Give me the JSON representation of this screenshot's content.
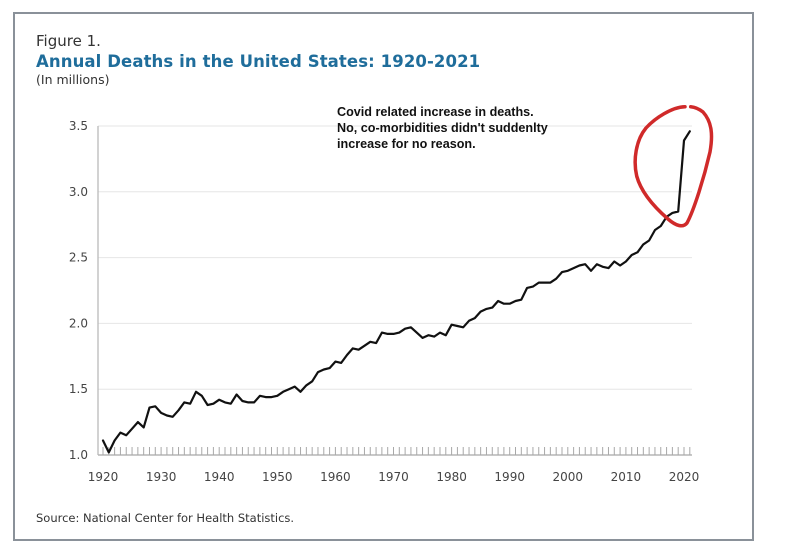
{
  "figure": {
    "label": "Figure 1.",
    "title": "Annual Deaths in the United States: 1920-2021",
    "subtitle": "(In millions)",
    "source": "Source: National Center for Health Statistics.",
    "title_color": "#1f6d9b"
  },
  "annotation": {
    "lines": [
      "Covid related increase in deaths.",
      "No, co-morbidities didn't suddenlty",
      "increase for no reason."
    ],
    "highlight_color": "#d02a2a",
    "highlight_shape": "hand-drawn circle around 2019-2021 values"
  },
  "chart_data": {
    "type": "line",
    "title": "Annual Deaths in the United States: 1920-2021",
    "subtitle": "(In millions)",
    "xlabel": "",
    "ylabel": "",
    "xlim": [
      1920,
      2021
    ],
    "ylim": [
      1.0,
      3.5
    ],
    "grid": "horizontal",
    "legend": "none",
    "x_ticks": [
      "1920",
      "1930",
      "1940",
      "1950",
      "1960",
      "1970",
      "1980",
      "1990",
      "2000",
      "2010",
      "2020"
    ],
    "y_ticks": [
      "1.0",
      "1.5",
      "2.0",
      "2.5",
      "3.0",
      "3.5"
    ],
    "series": [
      {
        "name": "Annual deaths (millions)",
        "color": "#111111",
        "x": [
          1920,
          1921,
          1922,
          1923,
          1924,
          1925,
          1926,
          1927,
          1928,
          1929,
          1930,
          1931,
          1932,
          1933,
          1934,
          1935,
          1936,
          1937,
          1938,
          1939,
          1940,
          1941,
          1942,
          1943,
          1944,
          1945,
          1946,
          1947,
          1948,
          1949,
          1950,
          1951,
          1952,
          1953,
          1954,
          1955,
          1956,
          1957,
          1958,
          1959,
          1960,
          1961,
          1962,
          1963,
          1964,
          1965,
          1966,
          1967,
          1968,
          1969,
          1970,
          1971,
          1972,
          1973,
          1974,
          1975,
          1976,
          1977,
          1978,
          1979,
          1980,
          1981,
          1982,
          1983,
          1984,
          1985,
          1986,
          1987,
          1988,
          1989,
          1990,
          1991,
          1992,
          1993,
          1994,
          1995,
          1996,
          1997,
          1998,
          1999,
          2000,
          2001,
          2002,
          2003,
          2004,
          2005,
          2006,
          2007,
          2008,
          2009,
          2010,
          2011,
          2012,
          2013,
          2014,
          2015,
          2016,
          2017,
          2018,
          2019,
          2020,
          2021
        ],
        "values": [
          1.11,
          1.02,
          1.11,
          1.17,
          1.15,
          1.2,
          1.25,
          1.21,
          1.36,
          1.37,
          1.32,
          1.3,
          1.29,
          1.34,
          1.4,
          1.39,
          1.48,
          1.45,
          1.38,
          1.39,
          1.42,
          1.4,
          1.39,
          1.46,
          1.41,
          1.4,
          1.4,
          1.45,
          1.44,
          1.44,
          1.45,
          1.48,
          1.5,
          1.52,
          1.48,
          1.53,
          1.56,
          1.63,
          1.65,
          1.66,
          1.71,
          1.7,
          1.76,
          1.81,
          1.8,
          1.83,
          1.86,
          1.85,
          1.93,
          1.92,
          1.92,
          1.93,
          1.96,
          1.97,
          1.93,
          1.89,
          1.91,
          1.9,
          1.93,
          1.91,
          1.99,
          1.98,
          1.97,
          2.02,
          2.04,
          2.09,
          2.11,
          2.12,
          2.17,
          2.15,
          2.15,
          2.17,
          2.18,
          2.27,
          2.28,
          2.31,
          2.31,
          2.31,
          2.34,
          2.39,
          2.4,
          2.42,
          2.44,
          2.45,
          2.4,
          2.45,
          2.43,
          2.42,
          2.47,
          2.44,
          2.47,
          2.52,
          2.54,
          2.6,
          2.63,
          2.71,
          2.74,
          2.81,
          2.84,
          2.85,
          3.39,
          3.46
        ]
      }
    ],
    "annotations": [
      "Covid related increase in deaths.",
      "No, co-morbidities didn't suddenlty",
      "increase for no reason."
    ]
  }
}
